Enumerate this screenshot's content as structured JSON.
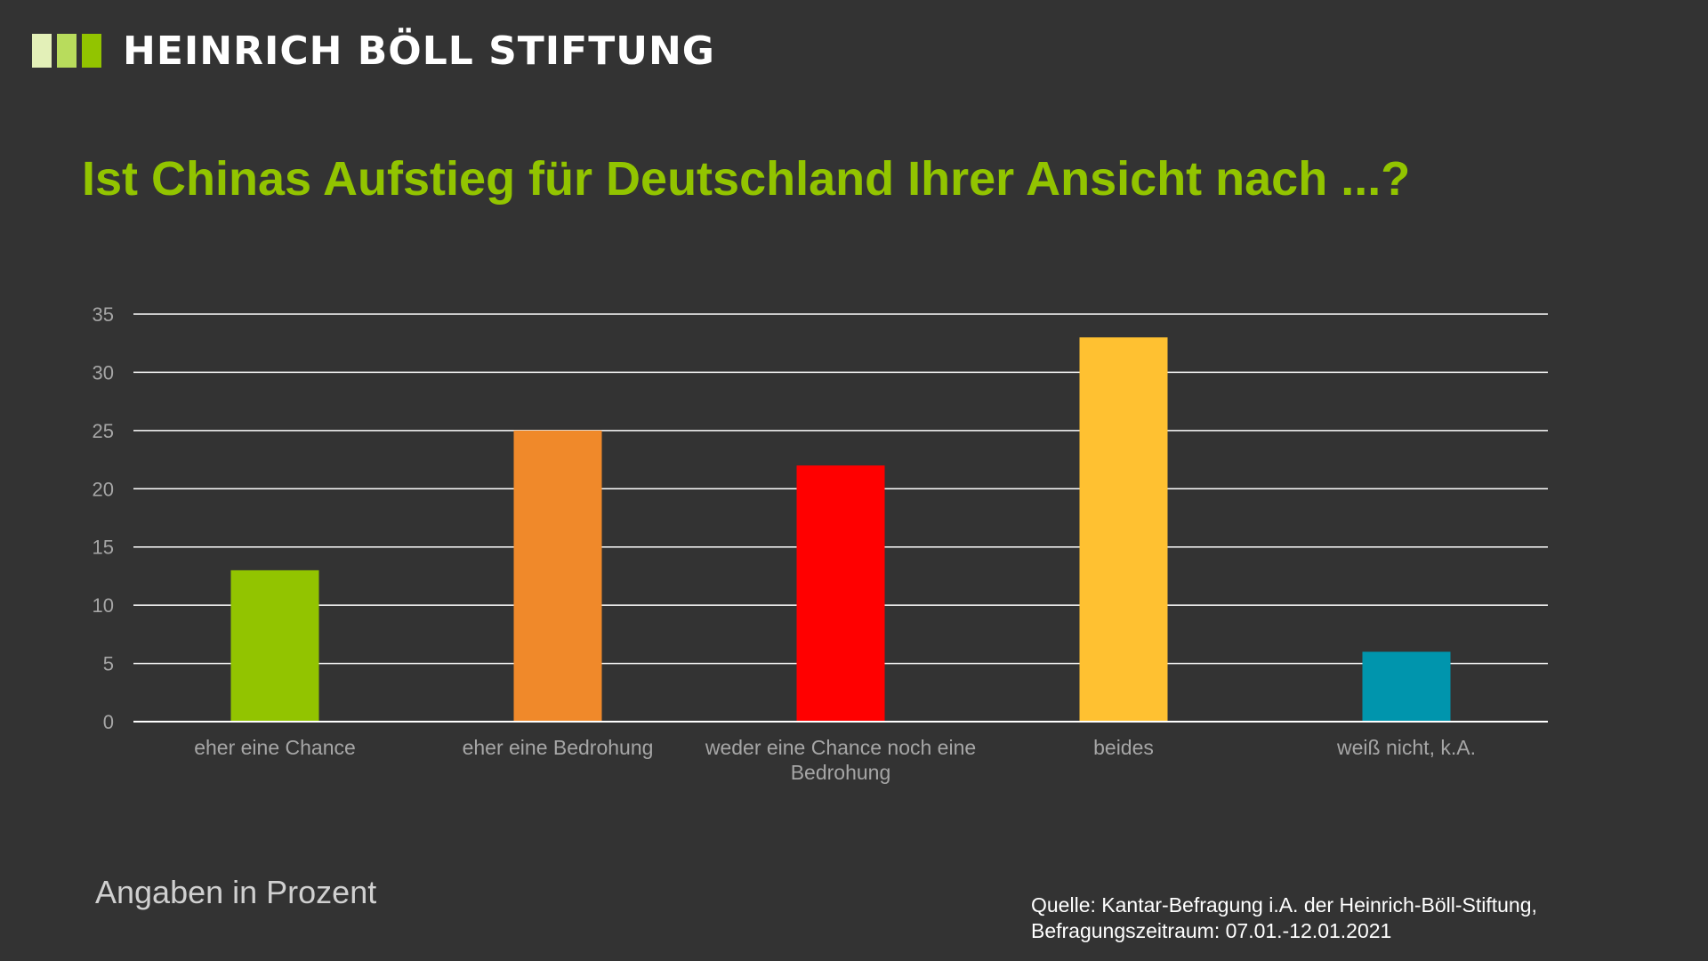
{
  "logo": {
    "text": "HEINRICH BÖLL STIFTUNG",
    "bar_colors": [
      "#e3f0b8",
      "#b8dc5c",
      "#92c400"
    ]
  },
  "title": "Ist Chinas Aufstieg für Deutschland Ihrer Ansicht nach ...?",
  "chart_data": {
    "type": "bar",
    "categories": [
      "eher eine Chance",
      "eher eine Bedrohung",
      "weder eine Chance noch eine Bedrohung",
      "beides",
      "weiß nicht, k.A."
    ],
    "category_label_lines": [
      [
        "eher eine Chance"
      ],
      [
        "eher eine Bedrohung"
      ],
      [
        "weder eine Chance noch eine",
        "Bedrohung"
      ],
      [
        "beides"
      ],
      [
        "weiß nicht, k.A."
      ]
    ],
    "values": [
      13,
      25,
      22,
      33,
      6
    ],
    "colors": [
      "#92c400",
      "#f0892a",
      "#ff0000",
      "#ffc131",
      "#0095ad"
    ],
    "ylim": [
      0,
      35
    ],
    "yticks": [
      "0",
      "5",
      "10",
      "15",
      "20",
      "25",
      "30",
      "35"
    ],
    "grid": true,
    "legend": "none",
    "title": "Ist Chinas Aufstieg für Deutschland Ihrer Ansicht nach ...?",
    "xlabel": "",
    "ylabel": ""
  },
  "footer": {
    "unit_note": "Angaben in Prozent",
    "source_line1": "Quelle: Kantar-Befragung i.A. der Heinrich-Böll-Stiftung,",
    "source_line2": "Befragungszeitraum: 07.01.-12.01.2021"
  }
}
